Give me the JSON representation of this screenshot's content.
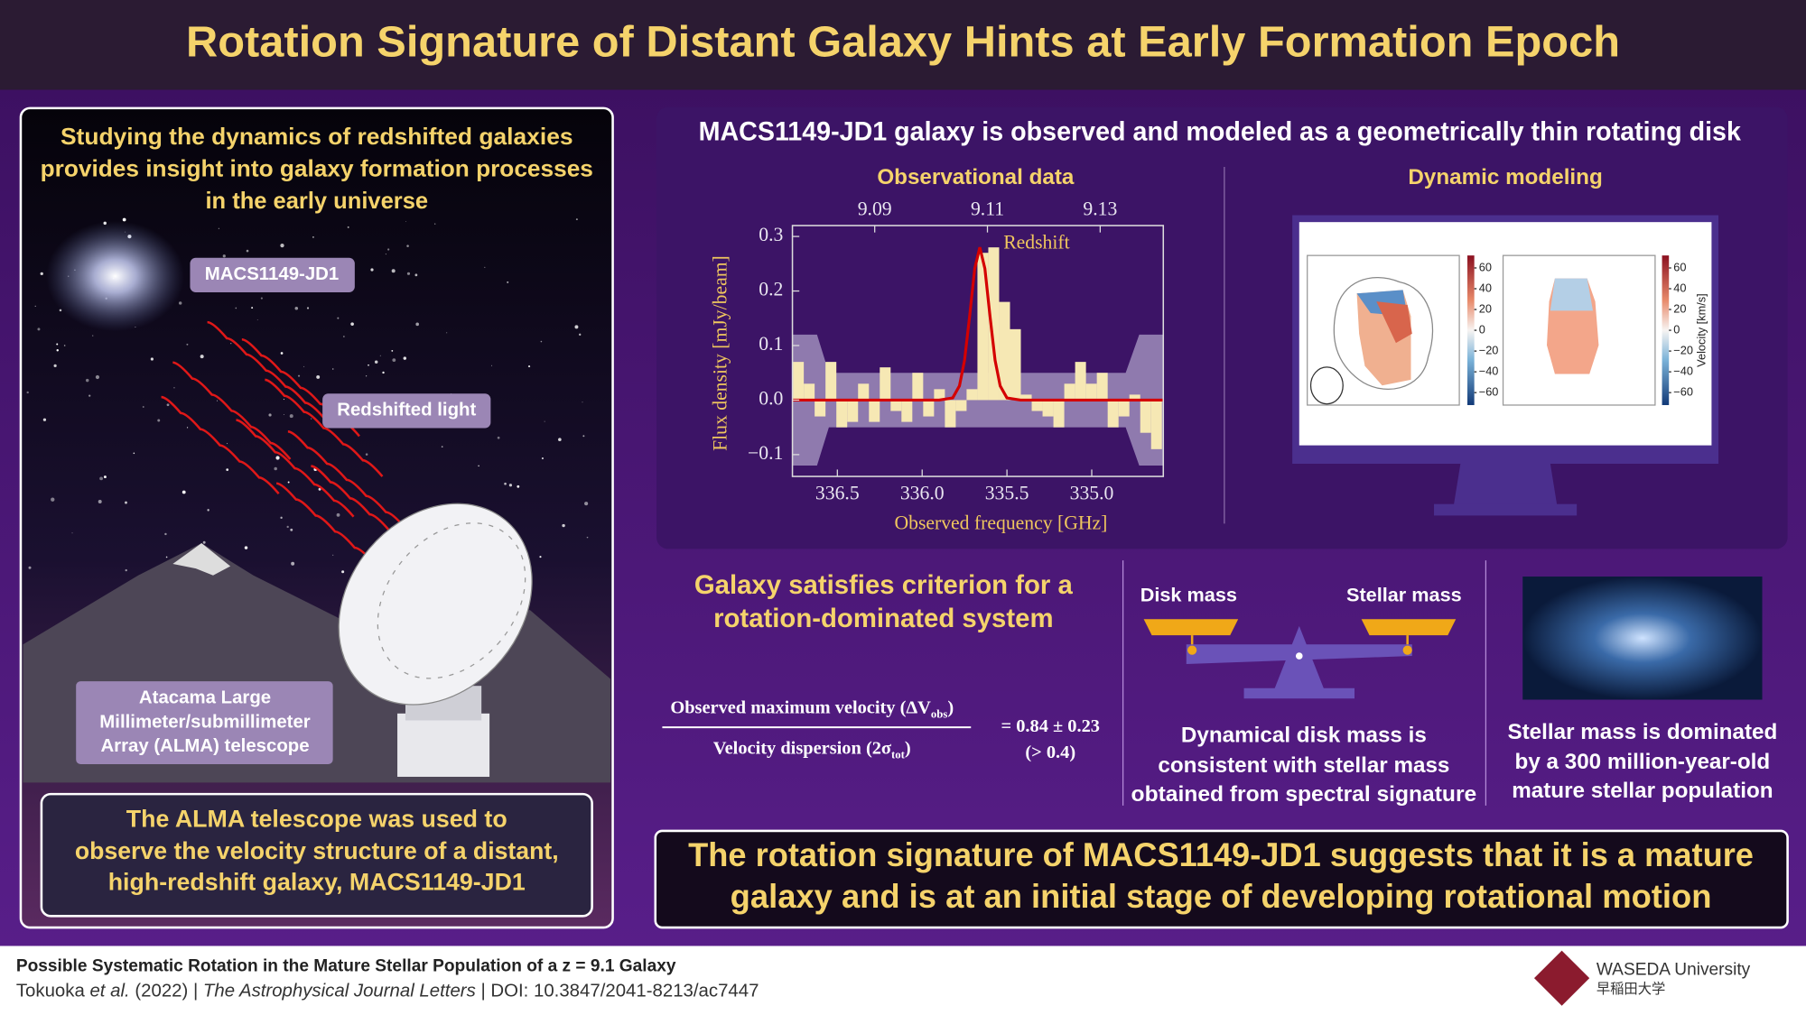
{
  "header": {
    "title": "Rotation Signature of Distant Galaxy Hints at Early Formation Epoch"
  },
  "left_panel": {
    "intro": [
      "Studying the dynamics of redshifted galaxies",
      "provides insight into galaxy formation processes",
      "in the early universe"
    ],
    "galaxy_label": "MACS1149-JD1",
    "light_label": "Redshifted light",
    "telescope_label": [
      "Atacama Large",
      "Millimeter/submillimeter",
      "Array (ALMA) telescope"
    ],
    "summary": [
      "The ALMA telescope was used to",
      "observe the velocity structure of a distant,",
      "high-redshift galaxy, MACS1149-JD1"
    ]
  },
  "observation_panel": {
    "heading": "MACS1149-JD1 galaxy is observed and modeled as a geometrically thin rotating disk"
  },
  "chart_data": {
    "type": "bar",
    "title": "Observational data",
    "x_label": "Observed frequency [GHz]",
    "y_label": "Flux density [mJy/beam]",
    "x2_label": "Redshift",
    "x": [
      336.73,
      336.666,
      336.602,
      336.538,
      336.474,
      336.41,
      336.346,
      336.282,
      336.218,
      336.154,
      336.09,
      336.026,
      335.962,
      335.898,
      335.834,
      335.77,
      335.706,
      335.642,
      335.578,
      335.514,
      335.45,
      335.386,
      335.322,
      335.258,
      335.194,
      335.13,
      335.066,
      335.002,
      334.938,
      334.874,
      334.81,
      334.746,
      334.682,
      334.618
    ],
    "values": [
      0.07,
      0.03,
      -0.03,
      0.07,
      -0.05,
      -0.04,
      0.03,
      -0.04,
      0.06,
      -0.02,
      -0.04,
      0.05,
      -0.03,
      0.02,
      -0.05,
      -0.02,
      0.02,
      0.27,
      0.28,
      0.18,
      0.13,
      0.01,
      -0.02,
      -0.03,
      -0.05,
      0.03,
      0.07,
      0.03,
      0.05,
      -0.05,
      -0.03,
      0.01,
      -0.06,
      -0.09
    ],
    "color": "#f6e8b4",
    "fit": {
      "x": [
        336.765,
        335.9,
        335.82,
        335.78,
        335.75,
        335.72,
        335.69,
        335.66,
        335.63,
        335.6,
        335.57,
        335.54,
        335.5,
        335.42,
        334.578
      ],
      "values": [
        0,
        0,
        0.004,
        0.026,
        0.073,
        0.154,
        0.241,
        0.28,
        0.241,
        0.154,
        0.073,
        0.026,
        0.004,
        0,
        0
      ],
      "color": "#d40000"
    },
    "noise": {
      "x": [
        336.765,
        336.62,
        336.55,
        334.8,
        334.72,
        334.578
      ],
      "upper": [
        0.12,
        0.12,
        0.05,
        0.05,
        0.12,
        0.12
      ],
      "lower": [
        -0.12,
        -0.12,
        -0.05,
        -0.05,
        -0.12,
        -0.12
      ],
      "color": "#9d8cbb"
    },
    "xlim": [
      336.765,
      334.578
    ],
    "xticks": [
      336.5,
      {
        "value": 336.0,
        "label": "336.0"
      },
      335.5,
      {
        "value": 335.0,
        "label": "335.0"
      }
    ],
    "x2lim": [
      9.0754,
      9.1412
    ],
    "x2ticks": [
      9.09,
      9.11,
      9.13
    ],
    "ylim": [
      -0.14,
      0.32
    ],
    "yticks": [
      {
        "value": -0.1,
        "label": "−0.1"
      },
      {
        "value": 0,
        "label": "0.0"
      },
      0.1,
      0.2,
      0.3
    ]
  },
  "dynamic_modeling": {
    "title": "Dynamic modeling",
    "colorbar_lim": [
      -72,
      72
    ],
    "colorbar_ticks": [
      60,
      40,
      20,
      0,
      {
        "value": -20,
        "label": "−20"
      },
      {
        "value": -40,
        "label": "−40"
      },
      {
        "value": -60,
        "label": "−60"
      }
    ],
    "colorbar_label": "Velocity [km/s]"
  },
  "criterion": {
    "title": [
      "Galaxy satisfies criterion for a",
      "rotation-dominated system"
    ],
    "numerator": [
      "Observed maximum velocity (ΔV",
      "obs",
      ")"
    ],
    "denominator": [
      "Velocity dispersion (2σ",
      "tot",
      ")"
    ],
    "result": "= 0.84 ± 0.23",
    "threshold": "(> 0.4)"
  },
  "mass": {
    "disk_label": "Disk mass",
    "stellar_label": "Stellar mass",
    "text": [
      "Dynamical disk mass is",
      "consistent with stellar mass",
      "obtained from spectral signature"
    ]
  },
  "population": {
    "text": [
      "Stellar mass is dominated",
      "by a 300 million-year-old",
      "mature stellar population"
    ]
  },
  "conclusion": [
    "The rotation signature of MACS1149-JD1 suggests that it is a mature",
    "galaxy and is at an initial stage of developing rotational motion"
  ],
  "footer": {
    "paper_title": "Possible Systematic Rotation in the Mature Stellar Population of a z = 9.1 Galaxy",
    "citation": [
      "Tokuoka ",
      "et al.",
      " (2022) | ",
      "The Astrophysical Journal Letters",
      " | DOI: 10.3847/2041-8213/ac7447"
    ],
    "institution": "WASEDA University",
    "institution_jp": "早稲田大学"
  }
}
